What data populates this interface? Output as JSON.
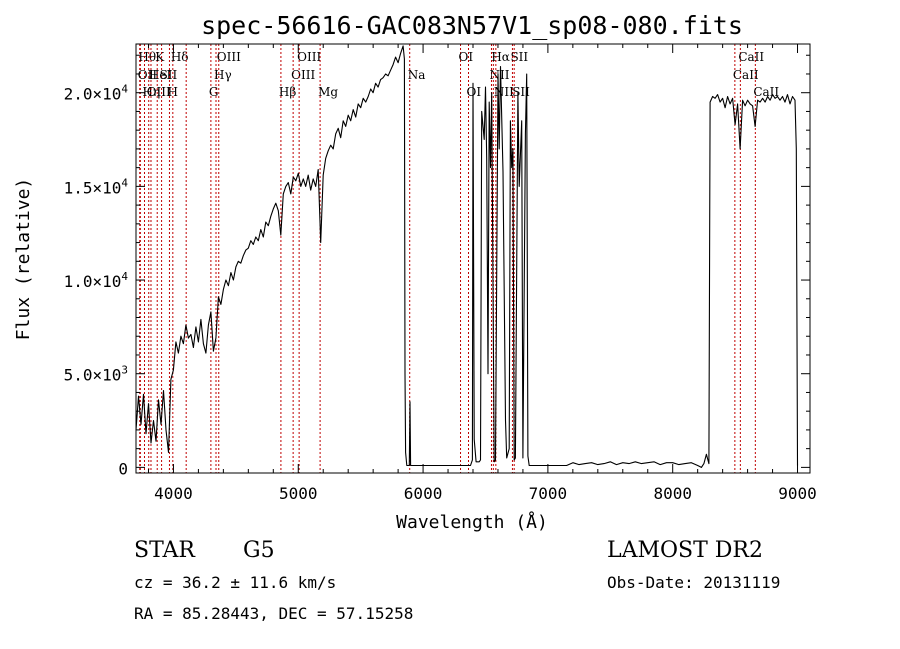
{
  "chart_data": {
    "type": "line",
    "title": "spec-56616-GAC083N57V1_sp08-080.fits",
    "xlabel": "Wavelength (Å)",
    "ylabel": "Flux (relative)",
    "xlim": [
      3700,
      9100
    ],
    "ylim": [
      -300,
      22600
    ],
    "x_ticks": [
      {
        "value": 4000,
        "label": "4000"
      },
      {
        "value": 5000,
        "label": "5000"
      },
      {
        "value": 6000,
        "label": "6000"
      },
      {
        "value": 7000,
        "label": "7000"
      },
      {
        "value": 8000,
        "label": "8000"
      },
      {
        "value": 9000,
        "label": "9000"
      }
    ],
    "y_ticks": [
      {
        "value": 0,
        "mantissa": "0",
        "exp": ""
      },
      {
        "value": 5000,
        "mantissa": "5.0×10",
        "exp": "3"
      },
      {
        "value": 10000,
        "mantissa": "1.0×10",
        "exp": "4"
      },
      {
        "value": 15000,
        "mantissa": "1.5×10",
        "exp": "4"
      },
      {
        "value": 20000,
        "mantissa": "2.0×10",
        "exp": "4"
      }
    ],
    "grid": false,
    "legend": "none",
    "series": [
      {
        "color": "#000000",
        "points": [
          [
            3700,
            2000
          ],
          [
            3720,
            3800
          ],
          [
            3740,
            2300
          ],
          [
            3760,
            3900
          ],
          [
            3780,
            1800
          ],
          [
            3800,
            3400
          ],
          [
            3820,
            1300
          ],
          [
            3840,
            2500
          ],
          [
            3860,
            1400
          ],
          [
            3880,
            3600
          ],
          [
            3900,
            2300
          ],
          [
            3920,
            4100
          ],
          [
            3940,
            2000
          ],
          [
            3960,
            800
          ],
          [
            3980,
            4700
          ],
          [
            4000,
            5200
          ],
          [
            4020,
            6700
          ],
          [
            4040,
            6100
          ],
          [
            4060,
            7000
          ],
          [
            4080,
            6600
          ],
          [
            4100,
            7600
          ],
          [
            4120,
            6900
          ],
          [
            4140,
            7100
          ],
          [
            4160,
            6400
          ],
          [
            4180,
            7500
          ],
          [
            4200,
            6700
          ],
          [
            4220,
            7900
          ],
          [
            4240,
            6600
          ],
          [
            4260,
            6100
          ],
          [
            4280,
            7600
          ],
          [
            4300,
            8300
          ],
          [
            4320,
            6200
          ],
          [
            4340,
            6900
          ],
          [
            4360,
            9100
          ],
          [
            4380,
            8700
          ],
          [
            4400,
            9500
          ],
          [
            4420,
            10000
          ],
          [
            4440,
            9700
          ],
          [
            4460,
            10400
          ],
          [
            4480,
            10000
          ],
          [
            4500,
            10700
          ],
          [
            4520,
            11000
          ],
          [
            4540,
            10900
          ],
          [
            4560,
            11300
          ],
          [
            4580,
            11600
          ],
          [
            4600,
            11700
          ],
          [
            4620,
            12100
          ],
          [
            4640,
            11900
          ],
          [
            4660,
            12300
          ],
          [
            4680,
            12100
          ],
          [
            4700,
            12700
          ],
          [
            4720,
            12300
          ],
          [
            4740,
            13100
          ],
          [
            4760,
            12900
          ],
          [
            4780,
            13400
          ],
          [
            4800,
            13800
          ],
          [
            4820,
            14100
          ],
          [
            4840,
            13700
          ],
          [
            4860,
            12400
          ],
          [
            4880,
            14600
          ],
          [
            4900,
            15000
          ],
          [
            4920,
            15200
          ],
          [
            4940,
            14600
          ],
          [
            4960,
            15500
          ],
          [
            4980,
            15300
          ],
          [
            5000,
            15700
          ],
          [
            5020,
            15000
          ],
          [
            5040,
            15400
          ],
          [
            5060,
            15000
          ],
          [
            5080,
            15600
          ],
          [
            5100,
            14800
          ],
          [
            5120,
            15400
          ],
          [
            5140,
            15000
          ],
          [
            5160,
            15900
          ],
          [
            5180,
            12000
          ],
          [
            5200,
            15600
          ],
          [
            5220,
            16500
          ],
          [
            5240,
            16900
          ],
          [
            5260,
            17200
          ],
          [
            5280,
            17000
          ],
          [
            5300,
            17800
          ],
          [
            5320,
            18100
          ],
          [
            5340,
            17600
          ],
          [
            5360,
            18500
          ],
          [
            5380,
            18200
          ],
          [
            5400,
            18800
          ],
          [
            5420,
            18500
          ],
          [
            5440,
            19100
          ],
          [
            5460,
            18700
          ],
          [
            5480,
            19400
          ],
          [
            5500,
            19200
          ],
          [
            5520,
            19700
          ],
          [
            5540,
            19500
          ],
          [
            5560,
            19800
          ],
          [
            5580,
            20200
          ],
          [
            5600,
            20000
          ],
          [
            5620,
            20500
          ],
          [
            5640,
            20300
          ],
          [
            5660,
            20700
          ],
          [
            5680,
            20800
          ],
          [
            5700,
            21000
          ],
          [
            5720,
            20900
          ],
          [
            5740,
            21200
          ],
          [
            5760,
            21500
          ],
          [
            5780,
            21900
          ],
          [
            5800,
            21600
          ],
          [
            5820,
            22100
          ],
          [
            5840,
            22500
          ],
          [
            5850,
            21800
          ],
          [
            5855,
            5000
          ],
          [
            5860,
            800
          ],
          [
            5870,
            100
          ],
          [
            5890,
            100
          ],
          [
            5895,
            3500
          ],
          [
            5900,
            100
          ],
          [
            5950,
            100
          ],
          [
            6000,
            100
          ],
          [
            6050,
            100
          ],
          [
            6100,
            100
          ],
          [
            6150,
            100
          ],
          [
            6200,
            100
          ],
          [
            6250,
            100
          ],
          [
            6300,
            100
          ],
          [
            6350,
            100
          ],
          [
            6380,
            100
          ],
          [
            6395,
            400
          ],
          [
            6400,
            20500
          ],
          [
            6410,
            1500
          ],
          [
            6425,
            300
          ],
          [
            6440,
            300
          ],
          [
            6450,
            300
          ],
          [
            6460,
            400
          ],
          [
            6470,
            19000
          ],
          [
            6490,
            17500
          ],
          [
            6500,
            20300
          ],
          [
            6510,
            16500
          ],
          [
            6520,
            5000
          ],
          [
            6530,
            19500
          ],
          [
            6540,
            16000
          ],
          [
            6550,
            20000
          ],
          [
            6570,
            300
          ],
          [
            6580,
            400
          ],
          [
            6600,
            21000
          ],
          [
            6610,
            17000
          ],
          [
            6620,
            21400
          ],
          [
            6640,
            15800
          ],
          [
            6660,
            2500
          ],
          [
            6670,
            500
          ],
          [
            6690,
            1000
          ],
          [
            6700,
            18500
          ],
          [
            6710,
            16000
          ],
          [
            6720,
            17000
          ],
          [
            6730,
            400
          ],
          [
            6740,
            500
          ],
          [
            6760,
            20000
          ],
          [
            6770,
            15000
          ],
          [
            6790,
            18500
          ],
          [
            6800,
            500
          ],
          [
            6820,
            17800
          ],
          [
            6830,
            21000
          ],
          [
            6840,
            600
          ],
          [
            6850,
            100
          ],
          [
            6900,
            100
          ],
          [
            6950,
            100
          ],
          [
            7000,
            100
          ],
          [
            7050,
            100
          ],
          [
            7100,
            100
          ],
          [
            7150,
            100
          ],
          [
            7200,
            250
          ],
          [
            7250,
            150
          ],
          [
            7300,
            200
          ],
          [
            7350,
            250
          ],
          [
            7400,
            150
          ],
          [
            7450,
            200
          ],
          [
            7500,
            300
          ],
          [
            7550,
            150
          ],
          [
            7600,
            250
          ],
          [
            7650,
            200
          ],
          [
            7700,
            300
          ],
          [
            7750,
            200
          ],
          [
            7800,
            250
          ],
          [
            7850,
            300
          ],
          [
            7900,
            150
          ],
          [
            7950,
            250
          ],
          [
            8000,
            250
          ],
          [
            8050,
            150
          ],
          [
            8100,
            200
          ],
          [
            8150,
            250
          ],
          [
            8200,
            100
          ],
          [
            8230,
            0
          ],
          [
            8250,
            200
          ],
          [
            8270,
            700
          ],
          [
            8290,
            200
          ],
          [
            8300,
            19500
          ],
          [
            8320,
            19800
          ],
          [
            8340,
            19700
          ],
          [
            8360,
            19900
          ],
          [
            8380,
            19500
          ],
          [
            8400,
            19700
          ],
          [
            8420,
            19200
          ],
          [
            8440,
            19800
          ],
          [
            8460,
            19400
          ],
          [
            8480,
            19700
          ],
          [
            8500,
            18300
          ],
          [
            8520,
            19400
          ],
          [
            8540,
            17000
          ],
          [
            8560,
            19600
          ],
          [
            8580,
            19300
          ],
          [
            8600,
            19600
          ],
          [
            8620,
            19400
          ],
          [
            8640,
            19300
          ],
          [
            8660,
            18200
          ],
          [
            8680,
            19600
          ],
          [
            8700,
            19500
          ],
          [
            8720,
            19700
          ],
          [
            8740,
            19500
          ],
          [
            8760,
            19800
          ],
          [
            8780,
            19600
          ],
          [
            8800,
            19900
          ],
          [
            8820,
            19700
          ],
          [
            8840,
            19800
          ],
          [
            8860,
            19600
          ],
          [
            8880,
            19800
          ],
          [
            8900,
            19500
          ],
          [
            8920,
            19900
          ],
          [
            8940,
            19400
          ],
          [
            8960,
            19800
          ],
          [
            8980,
            19600
          ],
          [
            8990,
            17000
          ],
          [
            9000,
            100
          ]
        ]
      }
    ],
    "line_markers": [
      {
        "x": 3735,
        "label": "Hθ",
        "row": 0
      },
      {
        "x": 3730,
        "label": "OII",
        "row": 1
      },
      {
        "x": 3768,
        "label": "Hη",
        "row": 2
      },
      {
        "x": 3820,
        "label": "HeI",
        "row": 1
      },
      {
        "x": 3802,
        "label": "OIII",
        "row": 2
      },
      {
        "x": 3870,
        "label": "K",
        "row": 0
      },
      {
        "x": 3905,
        "label": "SII",
        "row": 1
      },
      {
        "x": 3968,
        "label": "H",
        "row": 2
      },
      {
        "x": 3995,
        "label": "Hδ",
        "row": 0
      },
      {
        "x": 4102,
        "label": "",
        "row": 0
      },
      {
        "x": 4300,
        "label": "G",
        "row": 2
      },
      {
        "x": 4341,
        "label": "Hγ",
        "row": 1
      },
      {
        "x": 4363,
        "label": "OIII",
        "row": 0
      },
      {
        "x": 4861,
        "label": "Hβ",
        "row": 2
      },
      {
        "x": 4959,
        "label": "OIII",
        "row": 1
      },
      {
        "x": 5007,
        "label": "OIII",
        "row": 0
      },
      {
        "x": 5175,
        "label": "Mg",
        "row": 2
      },
      {
        "x": 5893,
        "label": "Na",
        "row": 1
      },
      {
        "x": 6300,
        "label": "OI",
        "row": 0
      },
      {
        "x": 6364,
        "label": "OI",
        "row": 2
      },
      {
        "x": 6548,
        "label": "NII",
        "row": 1
      },
      {
        "x": 6563,
        "label": "Hα",
        "row": 0
      },
      {
        "x": 6583,
        "label": "NII",
        "row": 2
      },
      {
        "x": 6716,
        "label": "SII",
        "row": 0
      },
      {
        "x": 6730,
        "label": "SII",
        "row": 2
      },
      {
        "x": 8498,
        "label": "CaII",
        "row": 1
      },
      {
        "x": 8542,
        "label": "CaII",
        "row": 0
      },
      {
        "x": 8662,
        "label": "CaII",
        "row": 2
      }
    ]
  },
  "info": {
    "object_class": "STAR",
    "subclass": "G5",
    "survey": "LAMOST DR2",
    "redshift_line": "cz = 36.2 ± 11.6 km/s",
    "obs_date_line": "Obs-Date: 20131119",
    "coords_line": "RA =  85.28443, DEC =  57.15258"
  }
}
